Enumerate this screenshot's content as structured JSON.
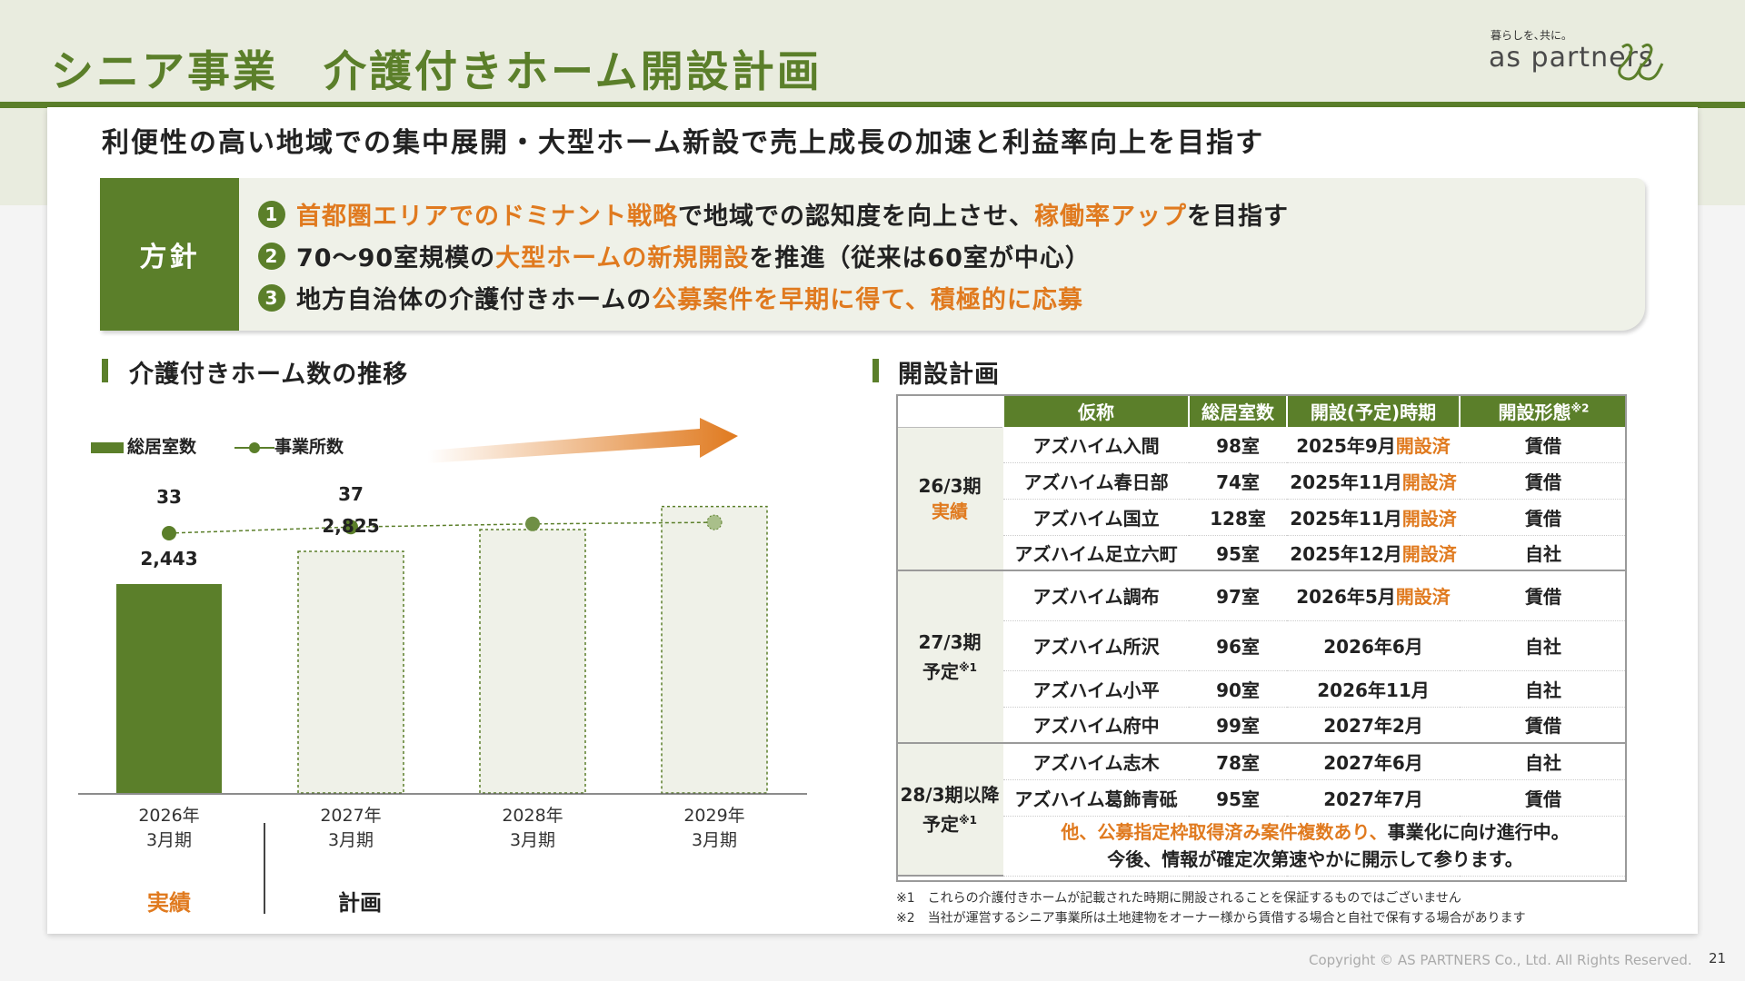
{
  "header": {
    "title": "シニア事業　介護付きホーム開設計画",
    "logo_tagline": "暮らしを､共に｡",
    "logo_text": "as partners"
  },
  "lead": "利便性の高い地域での集中展開・大型ホーム新設で売上成長の加速と利益率向上を目指す",
  "policy": {
    "label": "方針",
    "items": [
      {
        "num": "1",
        "parts": [
          {
            "text": "首都圏エリアでのドミナント戦略",
            "hl": true
          },
          {
            "text": "で地域での認知度を向上させ、",
            "hl": false
          },
          {
            "text": "稼働率アップ",
            "hl": true
          },
          {
            "text": "を目指す",
            "hl": false
          }
        ]
      },
      {
        "num": "2",
        "parts": [
          {
            "text": "70～90室規模の",
            "hl": false
          },
          {
            "text": "大型ホームの新規開設",
            "hl": true
          },
          {
            "text": "を推進（従来は60室が中心）",
            "hl": false
          }
        ]
      },
      {
        "num": "3",
        "parts": [
          {
            "text": "地方自治体の介護付きホームの",
            "hl": false
          },
          {
            "text": "公募案件を早期に得て、積極的に応募",
            "hl": true
          }
        ]
      }
    ]
  },
  "chart_section_title": "介護付きホーム数の推移",
  "chart_data": {
    "type": "bar",
    "categories": [
      "2026年\n3月期",
      "2027年\n3月期",
      "2028年\n3月期",
      "2029年\n3月期"
    ],
    "series": [
      {
        "name": "総居室数",
        "type": "bar",
        "values": [
          2443,
          2825,
          3080,
          3350
        ],
        "value_labels": [
          "2,443",
          "2,825",
          "",
          ""
        ]
      },
      {
        "name": "事業所数",
        "type": "line",
        "values": [
          33,
          37,
          39,
          40
        ],
        "value_labels": [
          "33",
          "37",
          "",
          ""
        ]
      }
    ],
    "actual_label": "実績",
    "plan_label": "計画",
    "colors": {
      "actual": "#5b7f2a",
      "plan_fill": "#eff1e8",
      "plan_border": "#5b7f2a",
      "arrow": "#e07a1f"
    }
  },
  "table_section_title": "開設計画",
  "table": {
    "headers": [
      "仮称",
      "総居室数",
      "開設(予定)時期",
      "開設形態"
    ],
    "header_note": "※2",
    "open_label": "開設済",
    "groups": [
      {
        "period": "26/3期",
        "sub": "実績",
        "sub_style": "hl",
        "note": "",
        "rows": [
          {
            "name": "アズハイム入間",
            "rooms": "98室",
            "date": "2025年9月",
            "opened": true,
            "type": "賃借"
          },
          {
            "name": "アズハイム春日部",
            "rooms": "74室",
            "date": "2025年11月",
            "opened": true,
            "type": "賃借"
          },
          {
            "name": "アズハイム国立",
            "rooms": "128室",
            "date": "2025年11月",
            "opened": true,
            "type": "賃借"
          },
          {
            "name": "アズハイム足立六町",
            "rooms": "95室",
            "date": "2025年12月",
            "opened": true,
            "type": "自社"
          }
        ]
      },
      {
        "period": "27/3期",
        "sub": "予定",
        "sub_style": "plain",
        "note": "※1",
        "rows": [
          {
            "name": "アズハイム調布",
            "rooms": "97室",
            "date": "2026年5月",
            "opened": true,
            "type": "賃借"
          },
          {
            "name": "アズハイム所沢",
            "rooms": "96室",
            "date": "2026年6月",
            "opened": false,
            "type": "自社"
          },
          {
            "name": "アズハイム小平",
            "rooms": "90室",
            "date": "2026年11月",
            "opened": false,
            "type": "自社"
          },
          {
            "name": "アズハイム府中",
            "rooms": "99室",
            "date": "2027年2月",
            "opened": false,
            "type": "賃借"
          }
        ]
      },
      {
        "period": "28/3期以降",
        "sub": "予定",
        "sub_style": "plain",
        "note": "※1",
        "rows": [
          {
            "name": "アズハイム志木",
            "rooms": "78室",
            "date": "2027年6月",
            "opened": false,
            "type": "自社"
          },
          {
            "name": "アズハイム葛飾青砥",
            "rooms": "95室",
            "date": "2027年7月",
            "opened": false,
            "type": "賃借"
          }
        ]
      }
    ],
    "closing_note_hl": "他、公募指定枠取得済み案件複数あり、",
    "closing_note_1": "事業化に向け進行中。",
    "closing_note_2": "今後、情報が確定次第速やかに開示して参ります。"
  },
  "footnotes": [
    "※1　これらの介護付きホームが記載された時期に開設されることを保証するものではございません",
    "※2　当社が運営するシニア事業所は土地建物をオーナー様から賃借する場合と自社で保有する場合があります"
  ],
  "copyright": "Copyright © AS PARTNERS Co., Ltd. All Rights Reserved.",
  "page_number": "21"
}
